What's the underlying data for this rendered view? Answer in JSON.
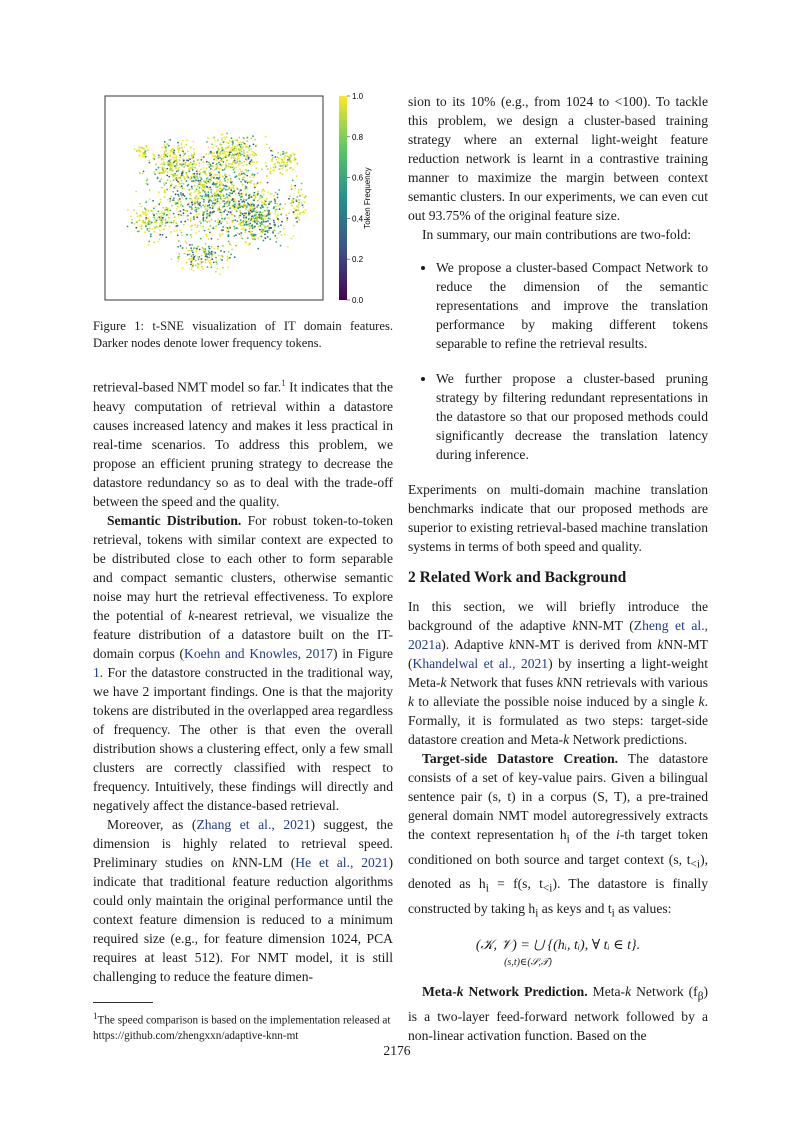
{
  "figure": {
    "colorbar_ticks": [
      "1.0",
      "0.8",
      "0.6",
      "0.4",
      "0.2",
      "0.0"
    ],
    "colorbar_label": "Token Frequency",
    "colors": {
      "high": "#fde725",
      "mid": "#21918c",
      "low": "#440154"
    }
  },
  "caption": "Figure 1:  t-SNE visualization of IT domain features. Darker nodes denote lower frequency tokens.",
  "left": {
    "p1_a": "retrieval-based NMT model so far.",
    "p1_fn": "1",
    "p1_b": " It indicates that the heavy computation of retrieval within a datastore causes increased latency and makes it less practical in real-time scenarios.  To address this problem, we propose an efficient pruning strategy to decrease the datastore redundancy so as to deal with the trade-off between the speed and the quality.",
    "p2_head": "Semantic Distribution.",
    "p2_a": " For robust token-to-token retrieval, tokens with similar context are expected to be distributed close to each other to form separable and compact semantic clusters, otherwise semantic noise may hurt the retrieval effectiveness. To explore the potential of ",
    "p2_k": "k",
    "p2_b": "-nearest retrieval, we visualize the feature distribution of a datastore built on the IT-domain corpus (",
    "p2_cite": "Koehn and Knowles, 2017",
    "p2_c": ") in Figure ",
    "p2_fig": "1",
    "p2_d": ". For the datastore constructed in the traditional way, we have 2 important findings.  One is that the majority tokens are distributed in the overlapped area regardless of frequency. The other is that even the overall distribution shows a clustering effect, only a few small clusters are correctly classified with respect to frequency. Intuitively, these findings will directly and negatively affect the distance-based retrieval.",
    "p3_a": "Moreover, as (",
    "p3_cite1": "Zhang et al., 2021",
    "p3_b": ") suggest, the dimension is highly related to retrieval speed. Preliminary studies on ",
    "p3_k": "k",
    "p3_c": "NN-LM (",
    "p3_cite2": "He et al., 2021",
    "p3_d": ") indicate that traditional feature reduction algorithms could only maintain the original performance until the context feature dimension is reduced to a minimum required size (e.g., for feature dimension 1024, PCA requires at least 512). For NMT model, it is still challenging to reduce the feature dimen-"
  },
  "footnote": {
    "num": "1",
    "text": "The speed comparison is based on the implementation released at https://github.com/zhengxxn/adaptive-knn-mt"
  },
  "right": {
    "p1": "sion to its 10% (e.g., from 1024 to <100). To tackle this problem, we design a cluster-based training strategy where an external light-weight feature reduction network is learnt in a contrastive training manner to maximize the margin between context semantic clusters. In our experiments, we can even cut out 93.75% of the original feature size.",
    "p2": "In summary, our main contributions are two-fold:",
    "bullet1": "We propose a cluster-based Compact Network to reduce the dimension of the semantic representations and improve the translation performance by making different tokens separable to refine the retrieval results.",
    "bullet2": "We further propose a cluster-based pruning strategy by filtering redundant representations in the datastore so that our proposed methods could significantly decrease the translation latency during inference.",
    "p3": "Experiments on multi-domain machine translation benchmarks indicate that our proposed methods are superior to existing retrieval-based machine translation systems in terms of both speed and quality.",
    "section": "2    Related Work and Background",
    "p4_a": "In this section, we will briefly introduce the background of the adaptive ",
    "p4_k1": "k",
    "p4_b": "NN-MT (",
    "p4_cite1": "Zheng et al., 2021a",
    "p4_c": "). Adaptive ",
    "p4_k2": "k",
    "p4_d": "NN-MT is derived from ",
    "p4_k3": "k",
    "p4_e": "NN-MT (",
    "p4_cite2": "Khandelwal et al., 2021",
    "p4_f": ") by inserting a light-weight Meta-",
    "p4_k4": "k",
    "p4_g": " Network that fuses ",
    "p4_k5": "k",
    "p4_h": "NN retrievals with various ",
    "p4_k6": "k",
    "p4_i": " to alleviate the possible noise induced by a single ",
    "p4_k7": "k",
    "p4_j": ". Formally, it is formulated as two steps: target-side datastore creation and Meta-",
    "p4_k8": "k",
    "p4_l": " Network predictions.",
    "p5_head": "Target-side Datastore Creation.",
    "p5_a": " The datastore consists of a set of key-value pairs. Given a bilingual sentence pair (s, t) in a corpus (S, T), a pre-trained general domain NMT model autoregressively extracts the context representation h",
    "p5_sub1": "i",
    "p5_b": " of the ",
    "p5_i": "i",
    "p5_c": "-th target token conditioned on both source and target context (s, t",
    "p5_sub2": "<i",
    "p5_d": "), denoted as h",
    "p5_sub3": "i",
    "p5_e": " = f(s, t",
    "p5_sub4": "<i",
    "p5_f": "). The datastore is finally constructed by taking h",
    "p5_sub5": "i",
    "p5_g": " as keys and t",
    "p5_sub6": "i",
    "p5_h": " as values:",
    "eq_main": "(𝒦, 𝒱) =  ⋃  {(hᵢ, tᵢ), ∀ tᵢ ∈ t}.",
    "eq_sub": "(s,t)∈(𝒮,𝒯)",
    "p6_head": "Meta-",
    "p6_k": "k",
    "p6_head2": " Network Prediction.",
    "p6_a": " Meta-",
    "p6_k2": "k",
    "p6_b": " Network (f",
    "p6_sub": "β",
    "p6_c": ") is a two-layer feed-forward network followed by a non-linear activation function. Based on the"
  },
  "page_number": "2176"
}
